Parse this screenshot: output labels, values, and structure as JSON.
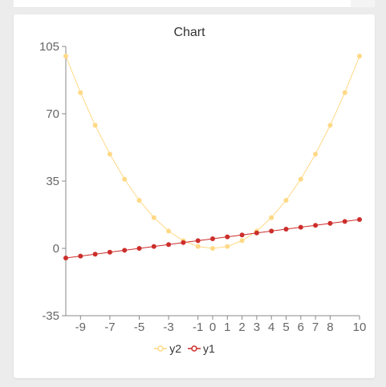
{
  "chart_data": {
    "type": "line",
    "title": "Chart",
    "xlabel": "",
    "ylabel": "",
    "xlim": [
      -10,
      10
    ],
    "ylim": [
      -35,
      105
    ],
    "x_ticks": [
      -9,
      -7,
      -5,
      -3,
      -1,
      0,
      1,
      2,
      3,
      4,
      5,
      6,
      7,
      8,
      10
    ],
    "y_ticks": [
      -35,
      0,
      35,
      70,
      105
    ],
    "x": [
      -10,
      -9,
      -8,
      -7,
      -6,
      -5,
      -4,
      -3,
      -2,
      -1,
      0,
      1,
      2,
      3,
      4,
      5,
      6,
      7,
      8,
      9,
      10
    ],
    "series": [
      {
        "name": "y2",
        "color": "#ffd986",
        "values": [
          100,
          81,
          64,
          49,
          36,
          25,
          16,
          9,
          4,
          1,
          0,
          1,
          4,
          9,
          16,
          25,
          36,
          49,
          64,
          81,
          100
        ]
      },
      {
        "name": "y1",
        "color": "#cc2e2b",
        "values": [
          -5,
          -4,
          -3,
          -2,
          -1,
          0,
          1,
          2,
          3,
          4,
          5,
          6,
          7,
          8,
          9,
          10,
          11,
          12,
          13,
          14,
          15
        ]
      }
    ],
    "legend_position": "bottom",
    "grid": false
  }
}
